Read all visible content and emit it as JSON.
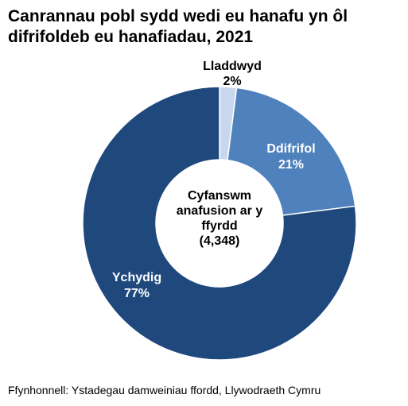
{
  "chart_data": {
    "type": "pie",
    "variant": "donut",
    "title_lines": [
      "Canrannau pobl sydd wedi eu hanafu yn ôl",
      "difrifoldeb eu hanafiadau, 2021"
    ],
    "center_label_lines": [
      "Cyfanswm",
      "anafusion ar y",
      "ffyrdd",
      "(4,348)"
    ],
    "slices": [
      {
        "name": "Lladdwyd",
        "value": 2,
        "value_label": "2%",
        "color": "#c9d7ee"
      },
      {
        "name": "Ddifrifol",
        "value": 21,
        "value_label": "21%",
        "color": "#4f81bd"
      },
      {
        "name": "Ychydig",
        "value": 77,
        "value_label": "77%",
        "color": "#1f497d"
      }
    ]
  },
  "source": "Ffynhonnell: Ystadegau damweiniau ffordd, Llywodraeth Cymru"
}
